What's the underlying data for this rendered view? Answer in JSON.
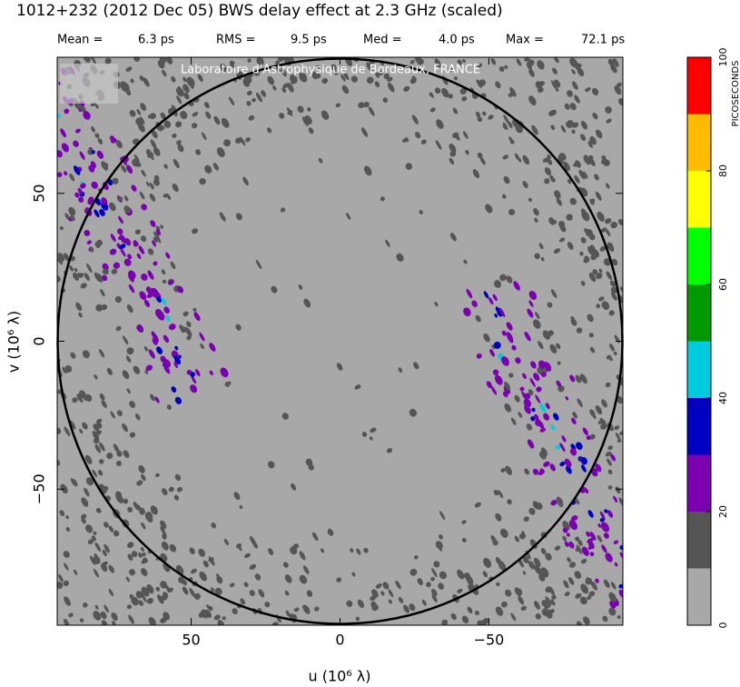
{
  "chart_data": {
    "type": "uv-map",
    "title": "1012+232  (2012 Dec 05)   BWS delay effect at  2.3 GHz (scaled)",
    "stats": [
      [
        "Mean =",
        "6.3 ps"
      ],
      [
        "RMS =",
        "9.5 ps"
      ],
      [
        "Med =",
        "4.0 ps"
      ],
      [
        "Max =",
        "72.1 ps"
      ]
    ],
    "watermark": "Laboratoire d'Astrophysique de Bordeaux, FRANCE",
    "xlabel": "u  (10⁶ λ)",
    "ylabel": "v  (10⁶ λ)",
    "xlim": [
      95,
      -95
    ],
    "ylim": [
      -96,
      96
    ],
    "xticks": [
      50,
      0,
      {
        "value": -50,
        "label": "−50"
      }
    ],
    "yticks": [
      {
        "value": -50,
        "label": "−50"
      },
      0,
      50
    ],
    "colorbar": {
      "label": "PICOSECONDS",
      "lim": [
        0,
        100
      ],
      "ticks": [
        0,
        20,
        40,
        60,
        80,
        100
      ],
      "colors": [
        "#a8a8a8",
        "#555555",
        "#7a00b0",
        "#0000c0",
        "#00ccdd",
        "#009900",
        "#00ff00",
        "#ffff00",
        "#ffbb00",
        "#ff0000"
      ]
    }
  }
}
